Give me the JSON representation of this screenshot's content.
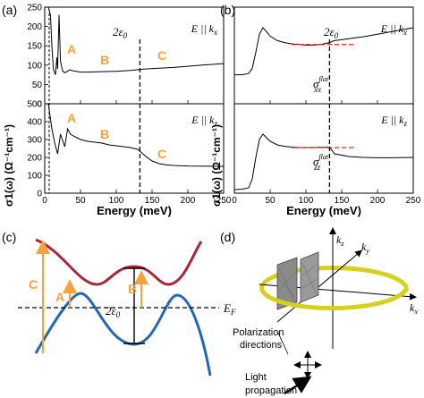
{
  "panels": {
    "a": {
      "label": "(a)",
      "top_field": "E || k",
      "top_sub": "x",
      "bottom_field": "E || k",
      "bottom_sub": "z",
      "eps_label": "2ε",
      "eps_sub": "0",
      "region_labels": [
        "A",
        "B",
        "C"
      ],
      "ylabel": "σ1(ω) (Ω⁻¹cm⁻¹)",
      "xlabel": "Energy (meV)"
    },
    "b": {
      "label": "(b)",
      "top_field": "E || k",
      "top_sub": "x",
      "bottom_field": "E || k",
      "bottom_sub": "z",
      "eps_label": "2ε",
      "eps_sub": "0",
      "sigma_top": "σ",
      "sigma_top_sub": "xx",
      "sigma_top_sup": "flat",
      "sigma_bot": "σ",
      "sigma_bot_sub": "zz",
      "sigma_bot_sup": "flat",
      "ylabel": "σ1(ω) (Ω⁻¹cm⁻¹)",
      "xlabel": "Energy (meV)"
    },
    "c": {
      "label": "(c)",
      "labels": [
        "C",
        "A",
        "B"
      ],
      "eps_label": "2ε",
      "eps_sub": "0",
      "fermi_label": "E",
      "fermi_sub": "F"
    },
    "d": {
      "label": "(d)",
      "axis_z": "k",
      "axis_z_sub": "z",
      "axis_y": "k",
      "axis_y_sub": "y",
      "axis_x": "k",
      "axis_x_sub": "x",
      "polarization_line1": "Polarization",
      "polarization_line2": "directions",
      "light_line1": "Light",
      "light_line2": "propagation"
    }
  },
  "colors": {
    "orange": "#f5a33a",
    "red_band": "#a8283a",
    "blue_band": "#2368b0",
    "ring": "#d8d020",
    "flat_dash": "#e02020"
  },
  "chart_data": [
    {
      "type": "line",
      "panel": "a-top",
      "title": "",
      "xlabel": "",
      "ylabel": "",
      "xlim": [
        0,
        250
      ],
      "ylim": [
        0,
        250
      ],
      "xticks": [
        0,
        50,
        100,
        150,
        200,
        250
      ],
      "yticks": [
        0,
        50,
        100,
        150,
        200,
        250
      ],
      "x": [
        5,
        8,
        10,
        12,
        15,
        17,
        18,
        20,
        22,
        25,
        28,
        30,
        35,
        40,
        50,
        60,
        80,
        100,
        120,
        140,
        160,
        180,
        200,
        220,
        250
      ],
      "values": [
        250,
        230,
        150,
        90,
        75,
        120,
        90,
        230,
        110,
        85,
        80,
        82,
        88,
        85,
        82,
        82,
        83,
        84,
        86,
        90,
        92,
        94,
        97,
        100,
        104
      ],
      "vline": 133
    },
    {
      "type": "line",
      "panel": "a-bottom",
      "title": "",
      "xlabel": "Energy (meV)",
      "ylabel": "",
      "xlim": [
        0,
        250
      ],
      "ylim": [
        0,
        500
      ],
      "xticks": [
        0,
        50,
        100,
        150,
        200,
        250
      ],
      "yticks": [
        0,
        100,
        200,
        300,
        400,
        500
      ],
      "x": [
        5,
        10,
        14,
        18,
        22,
        28,
        32,
        36,
        40,
        45,
        50,
        60,
        70,
        80,
        90,
        100,
        110,
        120,
        130,
        140,
        150,
        160,
        170,
        180,
        200,
        220,
        250
      ],
      "values": [
        500,
        360,
        280,
        220,
        330,
        260,
        360,
        330,
        320,
        310,
        300,
        290,
        285,
        280,
        270,
        265,
        260,
        255,
        245,
        210,
        180,
        165,
        158,
        155,
        152,
        151,
        150
      ],
      "vline": 133
    },
    {
      "type": "line",
      "panel": "b-top",
      "xlabel": "",
      "ylabel": "",
      "xlim": [
        0,
        250
      ],
      "ylim": [
        0,
        150
      ],
      "xticks": [
        0,
        50,
        100,
        150,
        200,
        250
      ],
      "x": [
        0,
        10,
        20,
        25,
        30,
        35,
        40,
        45,
        50,
        60,
        70,
        80,
        90,
        100,
        110,
        120,
        133,
        140,
        160,
        180,
        200,
        220,
        250
      ],
      "values": [
        45,
        45,
        47,
        55,
        80,
        108,
        118,
        112,
        105,
        98,
        95,
        93,
        92,
        91,
        91,
        92,
        95,
        98,
        101,
        104,
        108,
        112,
        118
      ],
      "flat": 92,
      "vline": 133
    },
    {
      "type": "line",
      "panel": "b-bottom",
      "xlabel": "Energy (meV)",
      "ylabel": "",
      "xlim": [
        0,
        250
      ],
      "ylim": [
        0,
        500
      ],
      "xticks": [
        0,
        50,
        100,
        150,
        200,
        250
      ],
      "x": [
        0,
        10,
        20,
        25,
        30,
        35,
        40,
        45,
        50,
        60,
        70,
        80,
        90,
        100,
        110,
        120,
        133,
        140,
        160,
        180,
        200,
        220,
        250
      ],
      "values": [
        20,
        22,
        30,
        80,
        200,
        300,
        330,
        310,
        290,
        270,
        262,
        258,
        255,
        255,
        255,
        256,
        257,
        220,
        205,
        200,
        198,
        198,
        200
      ],
      "flat": 255,
      "vline": 133
    }
  ]
}
